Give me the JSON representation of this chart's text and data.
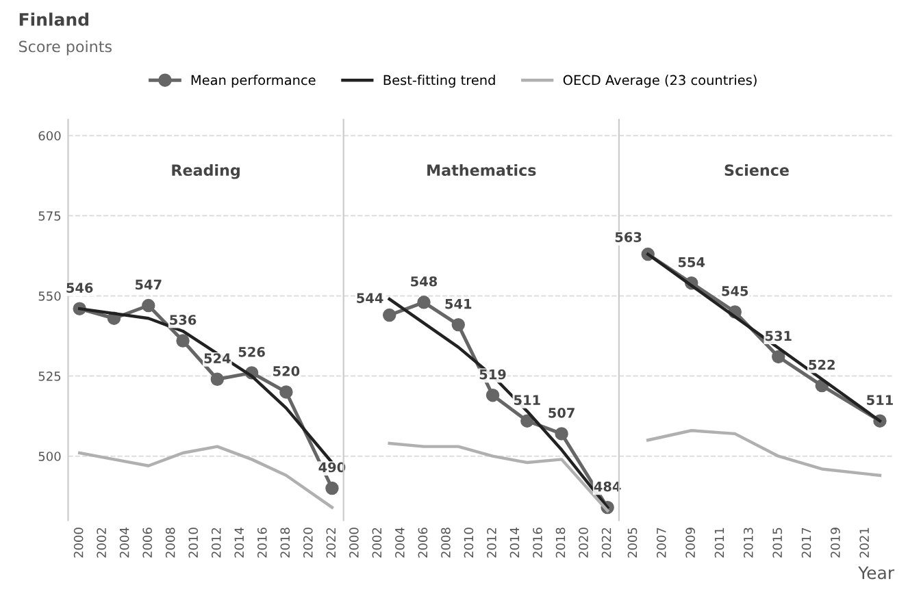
{
  "chart_data": [
    {
      "type": "line",
      "title": "Finland",
      "subtitle": "Score points",
      "annotations": [
        "Reading"
      ],
      "legend": "top",
      "grid": "y",
      "xlim": [
        1999,
        2023
      ],
      "xticks": [
        2000,
        2002,
        2004,
        2006,
        2008,
        2010,
        2012,
        2014,
        2016,
        2018,
        2020,
        2022
      ],
      "ylim": [
        480,
        605
      ],
      "yticks": [
        500,
        525,
        550,
        575,
        600
      ],
      "series": [
        {
          "name": "Mean performance",
          "color": "#666666",
          "marker": "circle",
          "x": [
            2000,
            2003,
            2006,
            2009,
            2012,
            2015,
            2018,
            2022
          ],
          "values": [
            546,
            543,
            547,
            536,
            524,
            526,
            520,
            490
          ],
          "value_labels": [
            "546",
            null,
            "547",
            "536",
            "524",
            "526",
            "520",
            "490"
          ]
        },
        {
          "name": "Best-fitting trend",
          "color": "#222222",
          "marker": "none",
          "x": [
            2000,
            2006,
            2009,
            2012,
            2015,
            2018,
            2022
          ],
          "values": [
            546,
            543,
            539,
            532,
            525,
            515,
            498
          ]
        },
        {
          "name": "OECD Average (23 countries)",
          "color": "#b0b0b0",
          "marker": "none",
          "x": [
            2000,
            2003,
            2006,
            2009,
            2012,
            2015,
            2018,
            2022
          ],
          "values": [
            501,
            499,
            497,
            501,
            503,
            499,
            494,
            484
          ]
        }
      ]
    },
    {
      "type": "line",
      "annotations": [
        "Mathematics"
      ],
      "grid": "y",
      "tick_labels": "x",
      "xlim": [
        1999,
        2023
      ],
      "xticks": [
        2000,
        2002,
        2004,
        2006,
        2008,
        2010,
        2012,
        2014,
        2016,
        2018,
        2020,
        2022
      ],
      "ylim": [
        480,
        605
      ],
      "yticks": [
        500,
        525,
        550,
        575,
        600
      ],
      "series": [
        {
          "color": "#666666",
          "marker": "circle",
          "x": [
            2003,
            2006,
            2009,
            2012,
            2015,
            2018,
            2022
          ],
          "values": [
            544,
            548,
            541,
            519,
            511,
            507,
            484
          ],
          "value_labels": [
            "544",
            "548",
            "541",
            "519",
            "511",
            "507",
            "484"
          ]
        },
        {
          "color": "#222222",
          "marker": "none",
          "x": [
            2003,
            2009,
            2012,
            2015,
            2018,
            2022
          ],
          "values": [
            549,
            534,
            525,
            514,
            502,
            484
          ]
        },
        {
          "color": "#b0b0b0",
          "marker": "none",
          "x": [
            2003,
            2006,
            2009,
            2012,
            2015,
            2018,
            2022
          ],
          "values": [
            504,
            503,
            503,
            500,
            498,
            499,
            483
          ]
        }
      ]
    },
    {
      "type": "line",
      "annotations": [
        "Science"
      ],
      "xlabel": "Year",
      "grid": "y",
      "tick_labels": "x",
      "xlim": [
        2004,
        2023
      ],
      "xticks": [
        2005,
        2007,
        2009,
        2011,
        2013,
        2015,
        2017,
        2019,
        2021
      ],
      "ylim": [
        480,
        605
      ],
      "yticks": [
        500,
        525,
        550,
        575,
        600
      ],
      "series": [
        {
          "color": "#666666",
          "marker": "circle",
          "x": [
            2006,
            2009,
            2012,
            2015,
            2018,
            2022
          ],
          "values": [
            563,
            554,
            545,
            531,
            522,
            511
          ],
          "value_labels": [
            "563",
            "554",
            "545",
            "531",
            "522",
            "511"
          ]
        },
        {
          "color": "#222222",
          "marker": "none",
          "x": [
            2006,
            2022
          ],
          "values": [
            563,
            511
          ]
        },
        {
          "color": "#b0b0b0",
          "marker": "none",
          "x": [
            2006,
            2009,
            2012,
            2015,
            2018,
            2022
          ],
          "values": [
            505,
            508,
            507,
            500,
            496,
            494
          ]
        }
      ]
    }
  ]
}
